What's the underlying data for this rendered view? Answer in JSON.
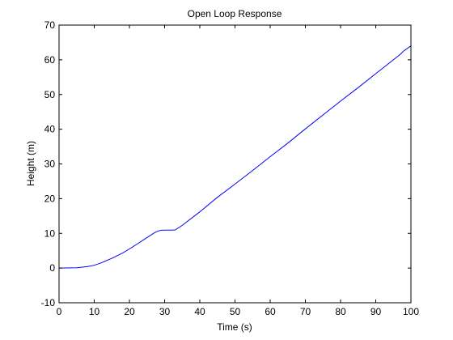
{
  "chart_data": {
    "type": "line",
    "title": "Open Loop Response",
    "xlabel": "Time (s)",
    "ylabel": "Height (m)",
    "xlim": [
      0,
      100
    ],
    "ylim": [
      -10,
      70
    ],
    "xticks": [
      0,
      10,
      20,
      30,
      40,
      50,
      60,
      70,
      80,
      90,
      100
    ],
    "yticks": [
      -10,
      0,
      10,
      20,
      30,
      40,
      50,
      60,
      70
    ],
    "grid": false,
    "legend": "none",
    "series": [
      {
        "color": "#0000ff",
        "x": [
          0,
          5,
          8,
          10,
          12,
          15,
          18,
          20,
          22,
          25,
          27,
          28,
          29,
          30,
          31,
          32,
          33,
          35,
          40,
          45,
          50,
          55,
          60,
          65,
          70,
          75,
          80,
          85,
          90,
          95,
          97,
          98,
          100
        ],
        "y": [
          0,
          0.1,
          0.4,
          0.8,
          1.5,
          2.8,
          4.3,
          5.5,
          6.8,
          8.8,
          10.1,
          10.6,
          10.9,
          10.95,
          10.95,
          10.95,
          11.0,
          12.3,
          16.2,
          20.4,
          24.2,
          28.1,
          32.1,
          36.0,
          40.1,
          44.1,
          48.1,
          52.0,
          56.0,
          60.0,
          61.6,
          62.6,
          64.0
        ]
      }
    ]
  }
}
